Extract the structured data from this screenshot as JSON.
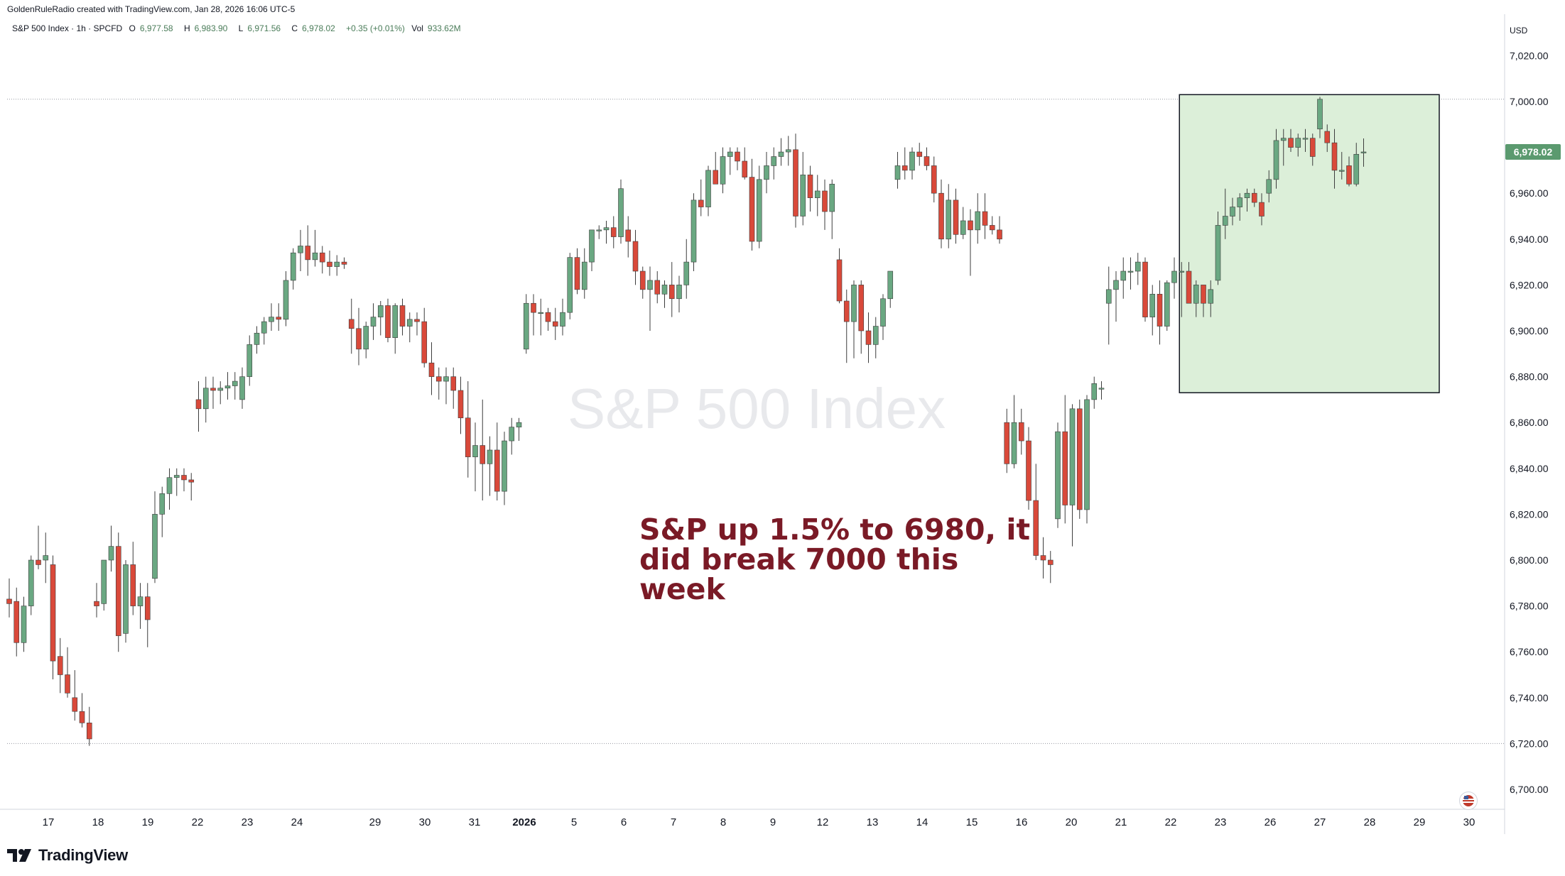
{
  "header": {
    "credit": "GoldenRuleRadio created with TradingView.com, Jan 28, 2026 16:06 UTC-5"
  },
  "legend": {
    "symbol": "S&P 500 Index · 1h · SPCFD",
    "open_label": "O",
    "open": "6,977.58",
    "high_label": "H",
    "high": "6,983.90",
    "low_label": "L",
    "low": "6,971.56",
    "close_label": "C",
    "close": "6,978.02",
    "change": "+0.35 (+0.01%)",
    "vol_label": "Vol",
    "vol": "933.62M"
  },
  "watermark": "S&P 500 Index",
  "annotation": {
    "line1": "S&P up 1.5% to 6980, it",
    "line2": "did break 7000 this week"
  },
  "brand": {
    "name": "TradingView"
  },
  "colors": {
    "up": "#6aa882",
    "down": "#d9493a",
    "highlight_fill": "#dcefd9",
    "annotation": "#7a1a26",
    "price_tag": "#5b9a6f"
  },
  "chart_data": {
    "type": "candlestick",
    "currency": "USD",
    "ylim": [
      6690,
      7030
    ],
    "y_ticks": [
      7020,
      7000,
      6980,
      6960,
      6940,
      6920,
      6900,
      6880,
      6860,
      6840,
      6820,
      6800,
      6780,
      6760,
      6740,
      6720,
      6700
    ],
    "y_tick_labels": [
      "7,020.00",
      "7,000.00",
      "6,980.00",
      "6,960.00",
      "6,940.00",
      "6,920.00",
      "6,900.00",
      "6,880.00",
      "6,860.00",
      "6,840.00",
      "6,820.00",
      "6,800.00",
      "6,780.00",
      "6,760.00",
      "6,740.00",
      "6,720.00",
      "6,700.00"
    ],
    "x_labels": [
      "17",
      "18",
      "19",
      "22",
      "23",
      "24",
      "29",
      "30",
      "31",
      "2026",
      "5",
      "6",
      "7",
      "8",
      "9",
      "12",
      "13",
      "14",
      "15",
      "16",
      "20",
      "21",
      "22",
      "23",
      "26",
      "27",
      "28",
      "29",
      "30"
    ],
    "last_price": 6978.02,
    "last_price_label": "6,978.02",
    "reference_lines": [
      7001,
      6720
    ],
    "highlight_box": {
      "candle_start": 161,
      "candle_end": 196,
      "price_top": 7003,
      "price_bottom": 6873
    },
    "candles": [
      [
        6783,
        6792,
        6775,
        6781
      ],
      [
        6782,
        6788,
        6758,
        6764
      ],
      [
        6764,
        6784,
        6760,
        6780
      ],
      [
        6780,
        6802,
        6776,
        6800
      ],
      [
        6800,
        6815,
        6796,
        6798
      ],
      [
        6800,
        6812,
        6790,
        6802
      ],
      [
        6798,
        6802,
        6748,
        6756
      ],
      [
        6758,
        6766,
        6742,
        6750
      ],
      [
        6750,
        6762,
        6740,
        6742
      ],
      [
        6740,
        6752,
        6730,
        6734
      ],
      [
        6734,
        6742,
        6727,
        6729
      ],
      [
        6729,
        6736,
        6719,
        6722
      ],
      [
        6782,
        6790,
        6775,
        6780
      ],
      [
        6781,
        6800,
        6778,
        6800
      ],
      [
        6800,
        6815,
        6795,
        6806
      ],
      [
        6806,
        6812,
        6760,
        6767
      ],
      [
        6768,
        6800,
        6764,
        6798
      ],
      [
        6798,
        6808,
        6776,
        6780
      ],
      [
        6780,
        6790,
        6770,
        6784
      ],
      [
        6784,
        6790,
        6762,
        6774
      ],
      [
        6792,
        6830,
        6790,
        6820
      ],
      [
        6820,
        6832,
        6810,
        6829
      ],
      [
        6829,
        6840,
        6822,
        6836
      ],
      [
        6836,
        6840,
        6828,
        6837
      ],
      [
        6837,
        6840,
        6830,
        6835
      ],
      [
        6835,
        6838,
        6826,
        6834
      ],
      [
        6870,
        6878,
        6856,
        6866
      ],
      [
        6866,
        6880,
        6860,
        6875
      ],
      [
        6875,
        6880,
        6866,
        6874
      ],
      [
        6874,
        6878,
        6868,
        6875
      ],
      [
        6875,
        6882,
        6870,
        6876
      ],
      [
        6876,
        6882,
        6870,
        6878
      ],
      [
        6870,
        6884,
        6866,
        6880
      ],
      [
        6880,
        6898,
        6876,
        6894
      ],
      [
        6894,
        6902,
        6890,
        6899
      ],
      [
        6899,
        6906,
        6894,
        6904
      ],
      [
        6904,
        6912,
        6900,
        6906
      ],
      [
        6906,
        6912,
        6900,
        6905
      ],
      [
        6905,
        6926,
        6902,
        6922
      ],
      [
        6922,
        6936,
        6918,
        6934
      ],
      [
        6934,
        6944,
        6926,
        6937
      ],
      [
        6937,
        6946,
        6924,
        6931
      ],
      [
        6931,
        6944,
        6928,
        6934
      ],
      [
        6934,
        6937,
        6925,
        6930
      ],
      [
        6930,
        6935,
        6924,
        6928
      ],
      [
        6928,
        6933,
        6924,
        6930
      ],
      [
        6930,
        6932,
        6927,
        6929
      ],
      [
        6905,
        6914,
        6890,
        6901
      ],
      [
        6901,
        6910,
        6885,
        6892
      ],
      [
        6892,
        6904,
        6888,
        6902
      ],
      [
        6902,
        6912,
        6896,
        6906
      ],
      [
        6906,
        6913,
        6898,
        6911
      ],
      [
        6911,
        6914,
        6895,
        6897
      ],
      [
        6897,
        6912,
        6890,
        6911
      ],
      [
        6911,
        6914,
        6898,
        6902
      ],
      [
        6902,
        6908,
        6895,
        6905
      ],
      [
        6905,
        6908,
        6898,
        6904
      ],
      [
        6904,
        6910,
        6884,
        6886
      ],
      [
        6886,
        6895,
        6872,
        6880
      ],
      [
        6880,
        6884,
        6870,
        6878
      ],
      [
        6878,
        6884,
        6868,
        6880
      ],
      [
        6880,
        6884,
        6866,
        6874
      ],
      [
        6874,
        6880,
        6855,
        6862
      ],
      [
        6862,
        6878,
        6836,
        6845
      ],
      [
        6845,
        6860,
        6830,
        6850
      ],
      [
        6850,
        6870,
        6826,
        6842
      ],
      [
        6842,
        6854,
        6828,
        6848
      ],
      [
        6848,
        6860,
        6826,
        6830
      ],
      [
        6830,
        6856,
        6824,
        6852
      ],
      [
        6852,
        6862,
        6846,
        6858
      ],
      [
        6858,
        6862,
        6852,
        6860
      ],
      [
        6892,
        6916,
        6890,
        6912
      ],
      [
        6912,
        6916,
        6898,
        6908
      ],
      [
        6908,
        6914,
        6898,
        6908
      ],
      [
        6908,
        6910,
        6900,
        6904
      ],
      [
        6904,
        6910,
        6896,
        6902
      ],
      [
        6902,
        6914,
        6898,
        6908
      ],
      [
        6908,
        6934,
        6905,
        6932
      ],
      [
        6932,
        6936,
        6916,
        6918
      ],
      [
        6918,
        6936,
        6914,
        6930
      ],
      [
        6930,
        6944,
        6926,
        6944
      ],
      [
        6944,
        6946,
        6940,
        6944
      ],
      [
        6944,
        6948,
        6938,
        6945
      ],
      [
        6945,
        6950,
        6936,
        6941
      ],
      [
        6941,
        6966,
        6938,
        6962
      ],
      [
        6944,
        6950,
        6932,
        6939
      ],
      [
        6939,
        6944,
        6920,
        6926
      ],
      [
        6926,
        6928,
        6914,
        6918
      ],
      [
        6918,
        6928,
        6900,
        6922
      ],
      [
        6922,
        6926,
        6912,
        6916
      ],
      [
        6916,
        6922,
        6910,
        6920
      ],
      [
        6920,
        6930,
        6906,
        6914
      ],
      [
        6914,
        6924,
        6908,
        6920
      ],
      [
        6920,
        6940,
        6914,
        6930
      ],
      [
        6930,
        6960,
        6926,
        6957
      ],
      [
        6957,
        6966,
        6950,
        6954
      ],
      [
        6954,
        6972,
        6950,
        6970
      ],
      [
        6970,
        6978,
        6966,
        6964
      ],
      [
        6964,
        6980,
        6960,
        6976
      ],
      [
        6976,
        6980,
        6968,
        6978
      ],
      [
        6978,
        6980,
        6970,
        6974
      ],
      [
        6974,
        6980,
        6966,
        6967
      ],
      [
        6967,
        6975,
        6935,
        6939
      ],
      [
        6939,
        6972,
        6936,
        6966
      ],
      [
        6966,
        6978,
        6960,
        6972
      ],
      [
        6972,
        6980,
        6966,
        6976
      ],
      [
        6976,
        6984,
        6972,
        6978
      ],
      [
        6978,
        6985,
        6972,
        6979
      ],
      [
        6979,
        6986,
        6945,
        6950
      ],
      [
        6950,
        6978,
        6946,
        6968
      ],
      [
        6968,
        6972,
        6952,
        6958
      ],
      [
        6958,
        6968,
        6950,
        6961
      ],
      [
        6961,
        6966,
        6944,
        6952
      ],
      [
        6952,
        6966,
        6940,
        6964
      ],
      [
        6931,
        6936,
        6912,
        6913
      ],
      [
        6913,
        6918,
        6886,
        6904
      ],
      [
        6904,
        6922,
        6888,
        6920
      ],
      [
        6920,
        6922,
        6890,
        6900
      ],
      [
        6900,
        6908,
        6886,
        6894
      ],
      [
        6894,
        6906,
        6888,
        6902
      ],
      [
        6902,
        6916,
        6896,
        6914
      ],
      [
        6914,
        6926,
        6910,
        6926
      ],
      [
        6966,
        6978,
        6962,
        6972
      ],
      [
        6972,
        6980,
        6966,
        6970
      ],
      [
        6970,
        6980,
        6966,
        6978
      ],
      [
        6978,
        6982,
        6972,
        6976
      ],
      [
        6976,
        6980,
        6970,
        6972
      ],
      [
        6972,
        6976,
        6956,
        6960
      ],
      [
        6960,
        6966,
        6936,
        6940
      ],
      [
        6940,
        6964,
        6936,
        6957
      ],
      [
        6957,
        6962,
        6938,
        6942
      ],
      [
        6942,
        6954,
        6940,
        6948
      ],
      [
        6948,
        6953,
        6924,
        6944
      ],
      [
        6944,
        6960,
        6938,
        6952
      ],
      [
        6952,
        6960,
        6940,
        6946
      ],
      [
        6946,
        6950,
        6942,
        6944
      ],
      [
        6944,
        6950,
        6938,
        6940
      ],
      [
        6860,
        6866,
        6838,
        6842
      ],
      [
        6842,
        6872,
        6840,
        6860
      ],
      [
        6860,
        6866,
        6846,
        6852
      ],
      [
        6852,
        6858,
        6822,
        6826
      ],
      [
        6826,
        6842,
        6800,
        6802
      ],
      [
        6802,
        6810,
        6792,
        6800
      ],
      [
        6800,
        6804,
        6790,
        6798
      ],
      [
        6818,
        6860,
        6814,
        6856
      ],
      [
        6856,
        6872,
        6816,
        6824
      ],
      [
        6824,
        6868,
        6806,
        6866
      ],
      [
        6866,
        6870,
        6818,
        6822
      ],
      [
        6822,
        6872,
        6816,
        6870
      ],
      [
        6870,
        6880,
        6866,
        6877
      ],
      [
        6875,
        6878,
        6870,
        6875
      ],
      [
        6912,
        6928,
        6894,
        6918
      ],
      [
        6918,
        6926,
        6904,
        6922
      ],
      [
        6922,
        6932,
        6914,
        6926
      ],
      [
        6926,
        6932,
        6918,
        6926
      ],
      [
        6926,
        6934,
        6920,
        6930
      ],
      [
        6930,
        6932,
        6904,
        6906
      ],
      [
        6906,
        6920,
        6898,
        6916
      ],
      [
        6916,
        6922,
        6894,
        6902
      ],
      [
        6902,
        6922,
        6900,
        6921
      ],
      [
        6921,
        6932,
        6914,
        6926
      ],
      [
        6926,
        6930,
        6906,
        6926
      ],
      [
        6926,
        6930,
        6914,
        6912
      ],
      [
        6912,
        6922,
        6906,
        6920
      ],
      [
        6920,
        6918,
        6906,
        6912
      ],
      [
        6912,
        6922,
        6906,
        6918
      ],
      [
        6922,
        6952,
        6920,
        6946
      ],
      [
        6946,
        6962,
        6940,
        6950
      ],
      [
        6950,
        6958,
        6946,
        6954
      ],
      [
        6954,
        6960,
        6948,
        6958
      ],
      [
        6958,
        6962,
        6952,
        6960
      ],
      [
        6960,
        6962,
        6954,
        6956
      ],
      [
        6956,
        6960,
        6946,
        6950
      ],
      [
        6960,
        6970,
        6956,
        6966
      ],
      [
        6966,
        6988,
        6962,
        6983
      ],
      [
        6983,
        6988,
        6972,
        6984
      ],
      [
        6984,
        6988,
        6978,
        6980
      ],
      [
        6980,
        6986,
        6976,
        6984
      ],
      [
        6984,
        6988,
        6978,
        6984
      ],
      [
        6984,
        6986,
        6972,
        6976
      ],
      [
        6988,
        7002,
        6984,
        7001
      ],
      [
        6987,
        6990,
        6978,
        6982
      ],
      [
        6982,
        6988,
        6962,
        6970
      ],
      [
        6970,
        6978,
        6966,
        6970
      ],
      [
        6972,
        6976,
        6963,
        6964
      ],
      [
        6964,
        6982,
        6963,
        6977
      ],
      [
        6977.58,
        6983.9,
        6971.56,
        6978.02
      ]
    ]
  }
}
